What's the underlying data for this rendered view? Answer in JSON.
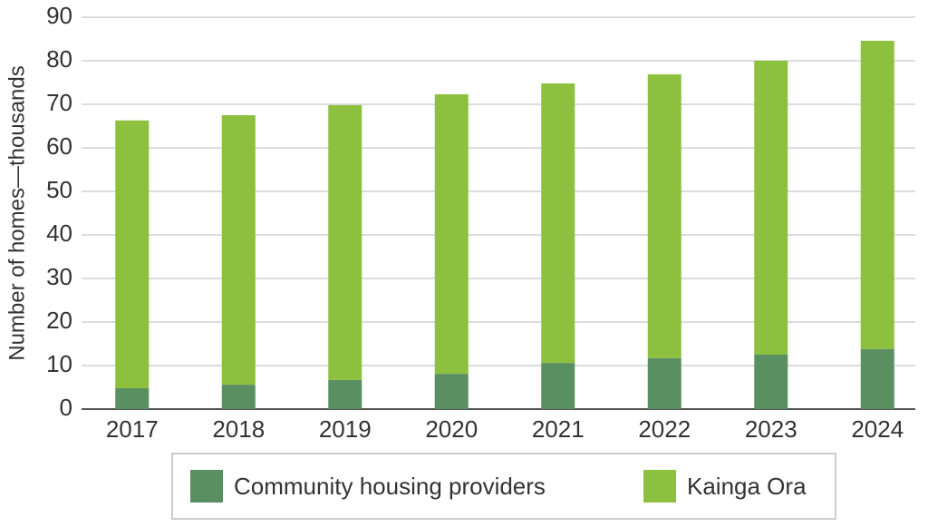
{
  "chart_data": {
    "type": "stacked_bar",
    "y_label": "Number of homes—thousands",
    "categories": [
      "2017",
      "2018",
      "2019",
      "2020",
      "2021",
      "2022",
      "2023",
      "2024"
    ],
    "series": [
      {
        "name": "Community housing providers",
        "color": "#5a8f62",
        "values": [
          4.8,
          5.6,
          6.7,
          8.1,
          10.6,
          11.7,
          12.5,
          13.8
        ]
      },
      {
        "name": "Kainga Ora",
        "color": "#8dc03f",
        "values": [
          61.5,
          61.9,
          63.1,
          64.2,
          64.2,
          65.2,
          67.5,
          70.8
        ]
      }
    ],
    "ylim": [
      0,
      90
    ],
    "yticks": [
      0,
      10,
      20,
      30,
      40,
      50,
      60,
      70,
      80,
      90
    ],
    "grid": true
  }
}
